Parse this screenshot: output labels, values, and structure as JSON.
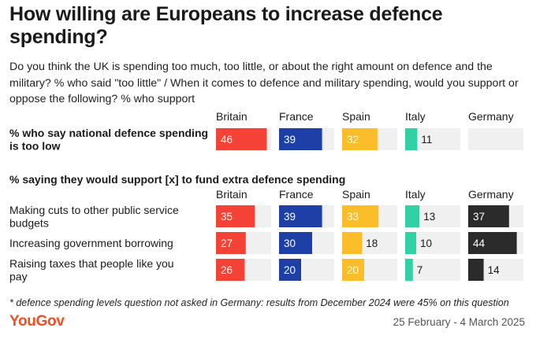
{
  "header": {
    "title": "How willing are Europeans to increase defence spending?",
    "subtitle": "Do you think the UK is spending too much, too little, or about the right amount on defence and the military? % who said \"too little\" / When it comes to defence and military spending, would you support or oppose the following? % who support"
  },
  "footer": {
    "note": "* defence spending levels question not asked in Germany: results from December 2024 were 45% on this question",
    "brand": "YouGov",
    "dates": "25 February - 4 March 2025"
  },
  "colors": {
    "Britain": "#f44336",
    "France": "#1e3fa6",
    "Spain": "#fbbd2a",
    "Italy": "#2fd1a5",
    "Germany": "#2b2b2b",
    "track": "#f0f0f0",
    "brand": "#f04e23"
  },
  "chart_data": {
    "type": "bar",
    "countries": [
      "Britain",
      "France",
      "Spain",
      "Italy",
      "Germany"
    ],
    "xlim": [
      0,
      50
    ],
    "sections": [
      {
        "header": "",
        "rows": [
          {
            "label": "% who say national defence spending is too low",
            "values": [
              46,
              39,
              32,
              11,
              null
            ]
          }
        ]
      },
      {
        "header": "% saying they would support [x] to fund extra defence spending",
        "rows": [
          {
            "label": "Making cuts to other public service budgets",
            "values": [
              35,
              39,
              33,
              13,
              37
            ]
          },
          {
            "label": "Increasing government borrowing",
            "values": [
              27,
              30,
              18,
              10,
              44
            ]
          },
          {
            "label": "Raising taxes that people like you pay",
            "values": [
              26,
              20,
              20,
              7,
              14
            ]
          }
        ]
      }
    ]
  }
}
